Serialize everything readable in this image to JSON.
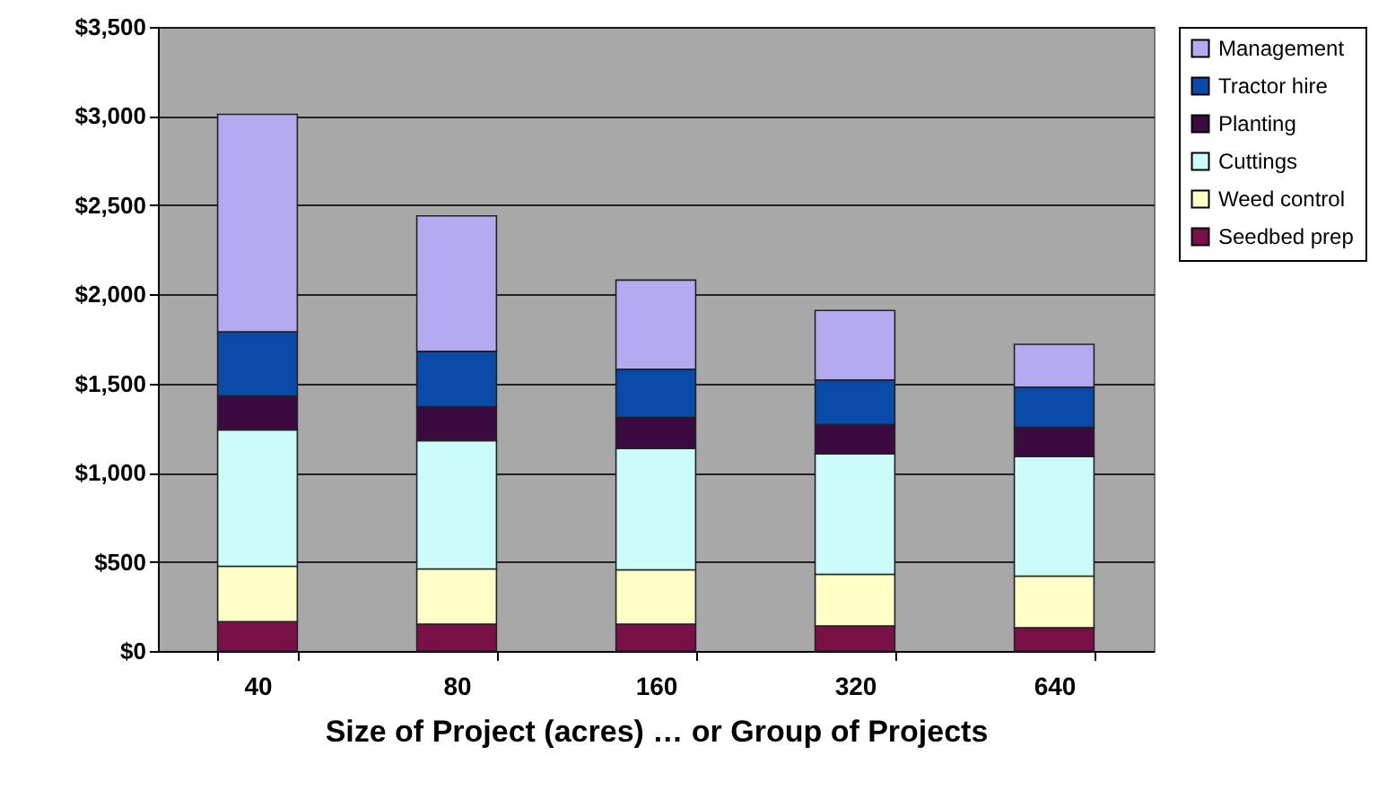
{
  "chart_data": {
    "type": "bar",
    "stacked": true,
    "xlabel": "Size of Project (acres) … or Group of Projects",
    "categories": [
      "40",
      "80",
      "160",
      "320",
      "640"
    ],
    "series": [
      {
        "name": "Seedbed prep",
        "color": "#7a1048",
        "values": [
          165,
          150,
          150,
          140,
          130
        ]
      },
      {
        "name": "Weed control",
        "color": "#ffffc8",
        "values": [
          310,
          310,
          305,
          290,
          290
        ]
      },
      {
        "name": "Cuttings",
        "color": "#ccfcfa",
        "values": [
          765,
          720,
          680,
          675,
          670
        ]
      },
      {
        "name": "Planting",
        "color": "#3a0a40",
        "values": [
          190,
          190,
          175,
          165,
          165
        ]
      },
      {
        "name": "Tractor hire",
        "color": "#0a4aa8",
        "values": [
          360,
          310,
          270,
          250,
          225
        ]
      },
      {
        "name": "Management",
        "color": "#b4aaf0",
        "values": [
          1220,
          760,
          500,
          390,
          240
        ]
      }
    ],
    "ylim": [
      0,
      3500
    ],
    "yticks": [
      {
        "value": 0,
        "label": "$0"
      },
      {
        "value": 500,
        "label": "$500"
      },
      {
        "value": 1000,
        "label": "$1,000"
      },
      {
        "value": 1500,
        "label": "$1,500"
      },
      {
        "value": 2000,
        "label": "$2,000"
      },
      {
        "value": 2500,
        "label": "$2,500"
      },
      {
        "value": 3000,
        "label": "$3,000"
      },
      {
        "value": 3500,
        "label": "$3,500"
      }
    ],
    "grid": "y",
    "legend": "right"
  }
}
